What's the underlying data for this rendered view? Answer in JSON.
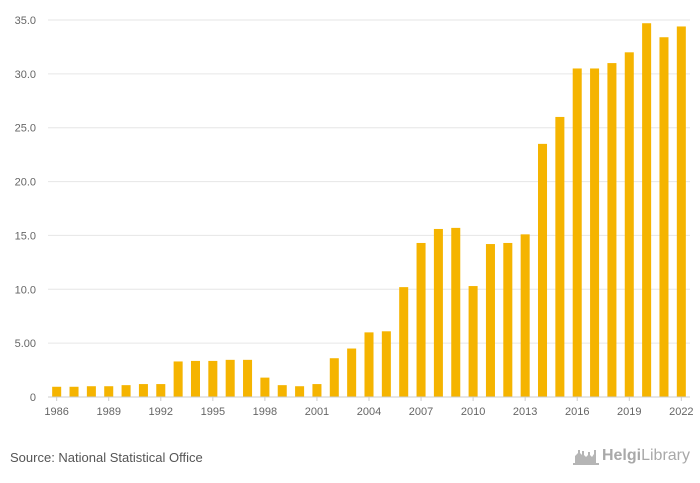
{
  "footer": {
    "source": "Source: National Statistical Office",
    "logo_bold": "Helgi",
    "logo_light": "Library"
  },
  "colors": {
    "bar": "#f5b400",
    "grid": "#e6e6e6",
    "axis": "#cccccc"
  },
  "chart_data": {
    "type": "bar",
    "categories": [
      "1986",
      "1987",
      "1988",
      "1989",
      "1990",
      "1991",
      "1992",
      "1993",
      "1994",
      "1995",
      "1996",
      "1997",
      "1998",
      "1999",
      "2000",
      "2001",
      "2002",
      "2003",
      "2004",
      "2005",
      "2006",
      "2007",
      "2008",
      "2009",
      "2010",
      "2011",
      "2012",
      "2013",
      "2014",
      "2015",
      "2016",
      "2017",
      "2018",
      "2019",
      "2020",
      "2021",
      "2022"
    ],
    "values": [
      0.95,
      0.95,
      1.0,
      1.0,
      1.1,
      1.2,
      1.2,
      3.3,
      3.35,
      3.35,
      3.45,
      3.45,
      1.8,
      1.1,
      1.0,
      1.2,
      3.6,
      4.5,
      6.0,
      6.1,
      10.2,
      14.3,
      15.6,
      15.7,
      10.3,
      14.2,
      14.3,
      15.1,
      23.5,
      26.0,
      30.5,
      30.5,
      31.0,
      32.0,
      34.7,
      33.4,
      34.4
    ],
    "x_tick_labels": [
      "1986",
      "1989",
      "1992",
      "1995",
      "1998",
      "2001",
      "2004",
      "2007",
      "2010",
      "2013",
      "2016",
      "2019",
      "2022"
    ],
    "y_ticks": [
      0,
      5,
      10,
      15,
      20,
      25,
      30,
      35
    ],
    "y_tick_labels": [
      "0",
      "5.00",
      "10.0",
      "15.0",
      "20.0",
      "25.0",
      "30.0",
      "35.0"
    ],
    "ylim": [
      0,
      35
    ],
    "grid": true,
    "title": "",
    "xlabel": "",
    "ylabel": ""
  }
}
